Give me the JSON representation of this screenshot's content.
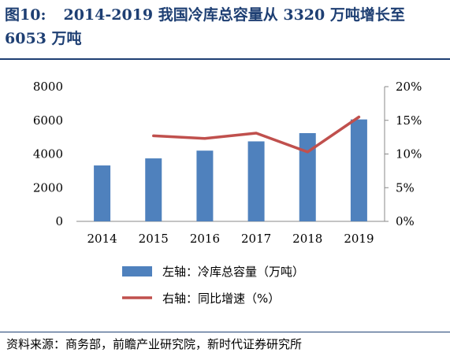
{
  "header": {
    "figure_label": "图10:",
    "title": "2014-2019 我国冷库总容量从 3320 万吨增长至 6053 万吨"
  },
  "footer": {
    "source": "资料来源：商务部，前瞻产业研究院，新时代证券研究所"
  },
  "colors": {
    "bar": "#4f81bd",
    "line": "#c0504d",
    "title": "#1e3f73"
  },
  "chart_data": {
    "type": "bar",
    "categories": [
      "2014",
      "2015",
      "2016",
      "2017",
      "2018",
      "2019"
    ],
    "series": [
      {
        "name": "左轴：冷库总容量（万吨）",
        "axis": "left",
        "type": "bar",
        "values": [
          3320,
          3740,
          4200,
          4750,
          5240,
          6053
        ]
      },
      {
        "name": "右轴：同比增速（%）",
        "axis": "right",
        "type": "line",
        "values": [
          null,
          12.7,
          12.3,
          13.1,
          10.3,
          15.5
        ]
      }
    ],
    "left_axis": {
      "ylim": [
        0,
        8000
      ],
      "ticks": [
        "0",
        "2000",
        "4000",
        "6000",
        "8000"
      ]
    },
    "right_axis": {
      "ylim": [
        0,
        20
      ],
      "ticks": [
        "0%",
        "5%",
        "10%",
        "15%",
        "20%"
      ]
    },
    "grid": false,
    "legend": "bottom"
  }
}
